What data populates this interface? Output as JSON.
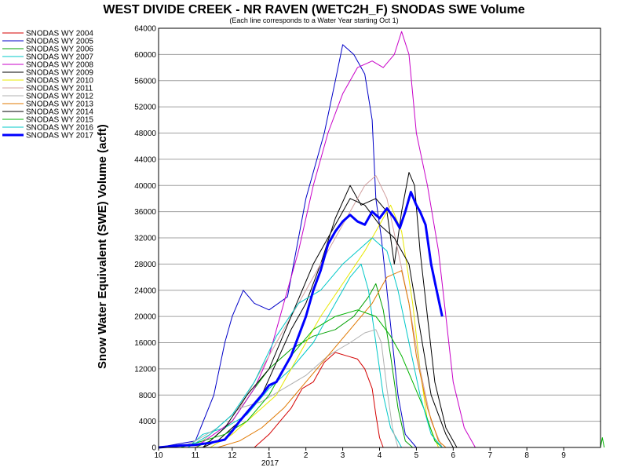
{
  "chart_data": {
    "type": "line",
    "title": "WEST DIVIDE CREEK - NR RAVEN (WETC2H_F) SNODAS SWE Volume",
    "subtitle": "(Each line corresponds to a Water Year starting Oct 1)",
    "ylabel": "Snow Water Equivalent (SWE) Volume (acft)",
    "xlabel": "",
    "x_tick_labels": [
      "10",
      "11",
      "12",
      "1",
      "2",
      "3",
      "4",
      "5",
      "6",
      "7",
      "8",
      "9"
    ],
    "x_year_label": "2017",
    "ylim": [
      0,
      64000
    ],
    "y_ticks": [
      0,
      4000,
      8000,
      12000,
      16000,
      20000,
      24000,
      28000,
      32000,
      36000,
      40000,
      44000,
      48000,
      52000,
      56000,
      60000,
      64000
    ],
    "grid": true,
    "legend_position": "top-left outside",
    "series": [
      {
        "name": "SNODAS WY 2004",
        "color": "#d40000",
        "width": 1,
        "points": [
          [
            2.6,
            0
          ],
          [
            3,
            2000
          ],
          [
            3.3,
            4000
          ],
          [
            3.6,
            6000
          ],
          [
            3.9,
            9000
          ],
          [
            4.2,
            10000
          ],
          [
            4.5,
            13000
          ],
          [
            4.8,
            14500
          ],
          [
            5.1,
            14000
          ],
          [
            5.4,
            13500
          ],
          [
            5.6,
            12000
          ],
          [
            5.8,
            9000
          ],
          [
            5.9,
            5000
          ],
          [
            6.0,
            1500
          ],
          [
            6.1,
            0
          ]
        ]
      },
      {
        "name": "SNODAS WY 2005",
        "color": "#0000c8",
        "width": 1,
        "points": [
          [
            0.0,
            0
          ],
          [
            0.5,
            500
          ],
          [
            1.0,
            1000
          ],
          [
            1.5,
            8000
          ],
          [
            1.8,
            16000
          ],
          [
            2.0,
            20000
          ],
          [
            2.3,
            24000
          ],
          [
            2.6,
            22000
          ],
          [
            3.0,
            21000
          ],
          [
            3.5,
            23000
          ],
          [
            4.0,
            38000
          ],
          [
            4.5,
            48000
          ],
          [
            4.8,
            56000
          ],
          [
            5.0,
            61500
          ],
          [
            5.3,
            60000
          ],
          [
            5.6,
            57000
          ],
          [
            5.8,
            50000
          ],
          [
            5.9,
            38000
          ],
          [
            6.05,
            32000
          ],
          [
            6.2,
            24000
          ],
          [
            6.5,
            8000
          ],
          [
            6.7,
            2000
          ],
          [
            7.0,
            0
          ]
        ]
      },
      {
        "name": "SNODAS WY 2006",
        "color": "#00a000",
        "width": 1,
        "points": [
          [
            1.0,
            0
          ],
          [
            1.4,
            1000
          ],
          [
            2.0,
            4000
          ],
          [
            2.6,
            9000
          ],
          [
            3.0,
            12000
          ],
          [
            3.6,
            15000
          ],
          [
            4.2,
            17000
          ],
          [
            4.8,
            18000
          ],
          [
            5.3,
            20000
          ],
          [
            5.7,
            23000
          ],
          [
            5.9,
            25000
          ],
          [
            6.1,
            21000
          ],
          [
            6.3,
            14000
          ],
          [
            6.5,
            6000
          ],
          [
            6.7,
            1000
          ],
          [
            6.9,
            0
          ]
        ]
      },
      {
        "name": "SNODAS WY 2007",
        "color": "#00c8c8",
        "width": 1,
        "points": [
          [
            0.8,
            0
          ],
          [
            1.2,
            2000
          ],
          [
            1.8,
            3000
          ],
          [
            2.4,
            5000
          ],
          [
            3.0,
            9000
          ],
          [
            3.6,
            12000
          ],
          [
            4.2,
            16000
          ],
          [
            4.8,
            22000
          ],
          [
            5.2,
            26000
          ],
          [
            5.5,
            28000
          ],
          [
            5.7,
            24000
          ],
          [
            5.9,
            16000
          ],
          [
            6.1,
            8000
          ],
          [
            6.3,
            3000
          ],
          [
            6.6,
            0
          ]
        ]
      },
      {
        "name": "SNODAS WY 2008",
        "color": "#c800c8",
        "width": 1,
        "points": [
          [
            1.0,
            0
          ],
          [
            1.5,
            2000
          ],
          [
            2.0,
            4000
          ],
          [
            2.6,
            9000
          ],
          [
            3.0,
            14000
          ],
          [
            3.4,
            22000
          ],
          [
            3.8,
            30000
          ],
          [
            4.2,
            40000
          ],
          [
            4.6,
            48000
          ],
          [
            5.0,
            54000
          ],
          [
            5.4,
            58000
          ],
          [
            5.8,
            59000
          ],
          [
            6.1,
            58000
          ],
          [
            6.4,
            60000
          ],
          [
            6.6,
            63500
          ],
          [
            6.8,
            60000
          ],
          [
            7.0,
            48000
          ],
          [
            7.3,
            40000
          ],
          [
            7.6,
            30000
          ],
          [
            7.8,
            20000
          ],
          [
            8.0,
            10000
          ],
          [
            8.3,
            3000
          ],
          [
            8.6,
            0
          ]
        ]
      },
      {
        "name": "SNODAS WY 2009",
        "color": "#000000",
        "width": 1,
        "points": [
          [
            1.2,
            0
          ],
          [
            1.6,
            1000
          ],
          [
            2.2,
            4000
          ],
          [
            2.8,
            8000
          ],
          [
            3.2,
            13000
          ],
          [
            3.6,
            18000
          ],
          [
            4.0,
            22000
          ],
          [
            4.4,
            28000
          ],
          [
            4.8,
            35000
          ],
          [
            5.2,
            40000
          ],
          [
            5.5,
            37000
          ],
          [
            5.9,
            38000
          ],
          [
            6.2,
            36000
          ],
          [
            6.4,
            28000
          ],
          [
            6.6,
            36000
          ],
          [
            6.8,
            42000
          ],
          [
            6.95,
            40000
          ],
          [
            7.1,
            30000
          ],
          [
            7.3,
            20000
          ],
          [
            7.5,
            10000
          ],
          [
            7.8,
            3000
          ],
          [
            8.1,
            0
          ]
        ]
      },
      {
        "name": "SNODAS WY 2010",
        "color": "#e8e800",
        "width": 1,
        "points": [
          [
            1.4,
            0
          ],
          [
            2.0,
            2000
          ],
          [
            2.6,
            5000
          ],
          [
            3.2,
            8000
          ],
          [
            3.8,
            14000
          ],
          [
            4.4,
            20000
          ],
          [
            5.0,
            25000
          ],
          [
            5.6,
            30000
          ],
          [
            6.0,
            34000
          ],
          [
            6.3,
            37000
          ],
          [
            6.6,
            33000
          ],
          [
            6.9,
            22000
          ],
          [
            7.1,
            12000
          ],
          [
            7.3,
            4000
          ],
          [
            7.6,
            0
          ]
        ]
      },
      {
        "name": "SNODAS WY 2011",
        "color": "#d2a0a0",
        "width": 1,
        "points": [
          [
            1.0,
            0
          ],
          [
            1.6,
            3000
          ],
          [
            2.2,
            6000
          ],
          [
            2.8,
            12000
          ],
          [
            3.4,
            18000
          ],
          [
            4.0,
            24000
          ],
          [
            4.6,
            30000
          ],
          [
            5.2,
            36000
          ],
          [
            5.6,
            40000
          ],
          [
            5.9,
            41500
          ],
          [
            6.2,
            38000
          ],
          [
            6.5,
            30000
          ],
          [
            6.8,
            22000
          ],
          [
            7.1,
            12000
          ],
          [
            7.4,
            4000
          ],
          [
            7.7,
            0
          ]
        ]
      },
      {
        "name": "SNODAS WY 2012",
        "color": "#b0b0b0",
        "width": 1,
        "points": [
          [
            0.6,
            0
          ],
          [
            1.0,
            1000
          ],
          [
            1.6,
            3000
          ],
          [
            2.2,
            6000
          ],
          [
            2.8,
            7000
          ],
          [
            3.4,
            9000
          ],
          [
            4.0,
            11000
          ],
          [
            4.6,
            14000
          ],
          [
            5.2,
            16000
          ],
          [
            5.6,
            17500
          ],
          [
            5.9,
            18000
          ],
          [
            6.05,
            16000
          ],
          [
            6.2,
            9000
          ],
          [
            6.35,
            3000
          ],
          [
            6.5,
            0
          ]
        ]
      },
      {
        "name": "SNODAS WY 2013",
        "color": "#e07800",
        "width": 1,
        "points": [
          [
            1.6,
            0
          ],
          [
            2.2,
            1000
          ],
          [
            2.8,
            3000
          ],
          [
            3.4,
            6000
          ],
          [
            4.0,
            10000
          ],
          [
            4.6,
            14000
          ],
          [
            5.2,
            18000
          ],
          [
            5.8,
            22000
          ],
          [
            6.2,
            26000
          ],
          [
            6.6,
            27000
          ],
          [
            6.8,
            22000
          ],
          [
            7.0,
            14000
          ],
          [
            7.3,
            6000
          ],
          [
            7.6,
            1000
          ],
          [
            7.8,
            0
          ]
        ]
      },
      {
        "name": "SNODAS WY 2014",
        "color": "#000000",
        "width": 1,
        "points": [
          [
            1.2,
            0
          ],
          [
            1.8,
            3000
          ],
          [
            2.4,
            8000
          ],
          [
            3.0,
            12000
          ],
          [
            3.6,
            20000
          ],
          [
            4.2,
            28000
          ],
          [
            4.8,
            34000
          ],
          [
            5.2,
            38000
          ],
          [
            5.6,
            37000
          ],
          [
            6.0,
            34000
          ],
          [
            6.4,
            32000
          ],
          [
            6.8,
            28000
          ],
          [
            7.1,
            18000
          ],
          [
            7.4,
            8000
          ],
          [
            7.8,
            2000
          ],
          [
            8.0,
            0
          ]
        ]
      },
      {
        "name": "SNODAS WY 2015",
        "color": "#00b400",
        "width": 1,
        "points": [
          [
            0.6,
            0
          ],
          [
            1.2,
            1000
          ],
          [
            1.8,
            2000
          ],
          [
            2.4,
            4000
          ],
          [
            3.0,
            8000
          ],
          [
            3.6,
            14000
          ],
          [
            4.2,
            18000
          ],
          [
            4.8,
            20000
          ],
          [
            5.4,
            21000
          ],
          [
            5.9,
            20000
          ],
          [
            6.3,
            17000
          ],
          [
            6.6,
            14000
          ],
          [
            6.9,
            10000
          ],
          [
            7.2,
            6000
          ],
          [
            7.5,
            1000
          ],
          [
            7.7,
            0
          ],
          [
            12.0,
            0
          ],
          [
            12.05,
            1500
          ],
          [
            12.1,
            0
          ]
        ]
      },
      {
        "name": "SNODAS WY 2016",
        "color": "#00c8c8",
        "width": 1,
        "points": [
          [
            0.8,
            0
          ],
          [
            1.4,
            2000
          ],
          [
            2.0,
            5000
          ],
          [
            2.6,
            10000
          ],
          [
            3.2,
            17000
          ],
          [
            3.8,
            22000
          ],
          [
            4.4,
            24000
          ],
          [
            5.0,
            28000
          ],
          [
            5.4,
            30000
          ],
          [
            5.8,
            32000
          ],
          [
            6.2,
            30000
          ],
          [
            6.5,
            24000
          ],
          [
            6.8,
            16000
          ],
          [
            7.1,
            8000
          ],
          [
            7.4,
            2000
          ],
          [
            7.7,
            0
          ]
        ]
      },
      {
        "name": "SNODAS WY 2017",
        "color": "#0000ff",
        "width": 3,
        "points": [
          [
            0.0,
            0
          ],
          [
            0.6,
            300
          ],
          [
            1.0,
            400
          ],
          [
            1.4,
            700
          ],
          [
            1.8,
            1200
          ],
          [
            2.0,
            2500
          ],
          [
            2.2,
            4000
          ],
          [
            2.5,
            6000
          ],
          [
            2.8,
            8000
          ],
          [
            3.0,
            9500
          ],
          [
            3.2,
            10000
          ],
          [
            3.4,
            12000
          ],
          [
            3.6,
            14000
          ],
          [
            3.8,
            17000
          ],
          [
            4.0,
            20000
          ],
          [
            4.2,
            24000
          ],
          [
            4.4,
            27000
          ],
          [
            4.6,
            31000
          ],
          [
            4.8,
            33000
          ],
          [
            5.0,
            34500
          ],
          [
            5.2,
            35500
          ],
          [
            5.4,
            34500
          ],
          [
            5.6,
            34000
          ],
          [
            5.8,
            36000
          ],
          [
            6.0,
            35000
          ],
          [
            6.2,
            36500
          ],
          [
            6.4,
            35000
          ],
          [
            6.55,
            33500
          ],
          [
            6.7,
            36000
          ],
          [
            6.85,
            39000
          ],
          [
            7.0,
            37000
          ],
          [
            7.1,
            36000
          ],
          [
            7.25,
            34000
          ],
          [
            7.4,
            28000
          ],
          [
            7.55,
            24000
          ],
          [
            7.7,
            20000
          ]
        ]
      }
    ]
  }
}
